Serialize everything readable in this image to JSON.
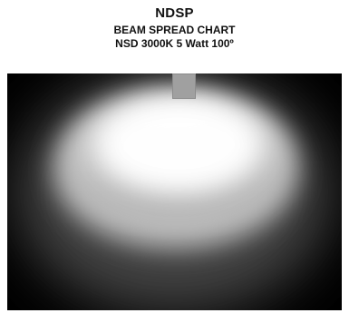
{
  "header": {
    "title": "NDSP",
    "subtitle": "BEAM SPREAD CHART",
    "product": "NSD 3000K 5 Watt 100º"
  },
  "diagram": {
    "type": "beam-spread",
    "beam_angle_degrees": 100,
    "color_temperature": "3000K",
    "wattage": "5 Watt",
    "colors": {
      "background": "#000000",
      "light": "#ffffff",
      "fixture": "#a0a0a0"
    }
  }
}
